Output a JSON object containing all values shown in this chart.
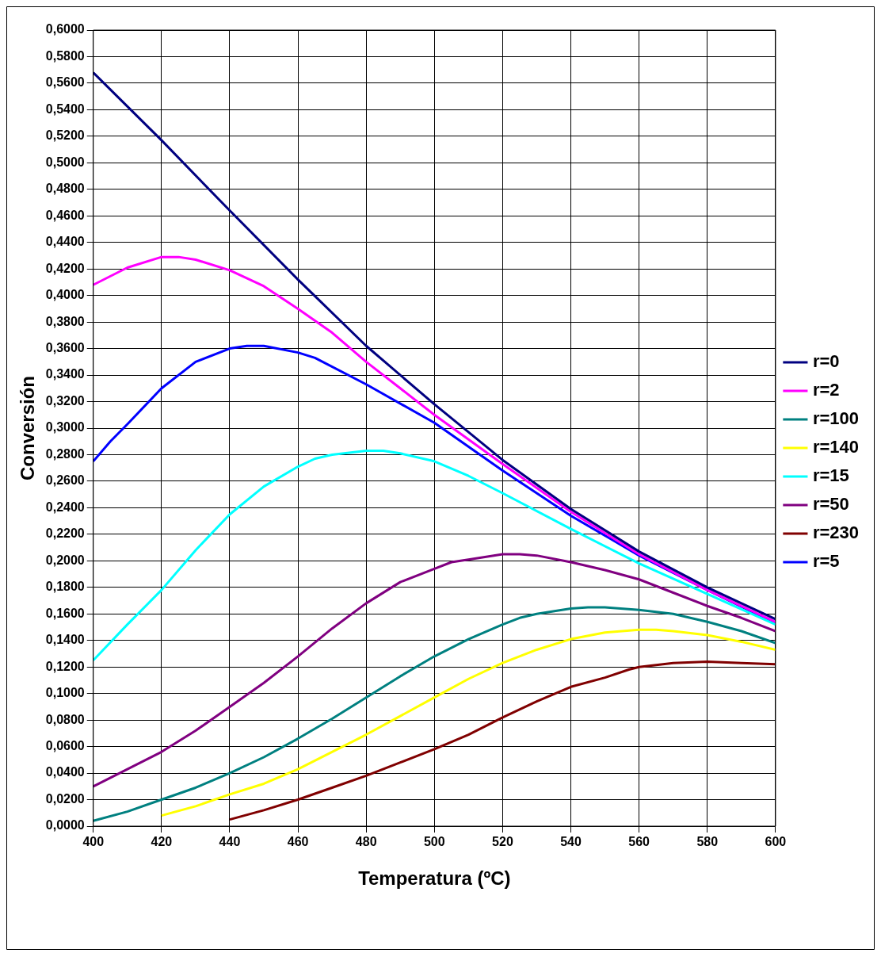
{
  "chart_data": {
    "type": "line",
    "xlabel": "Temperatura (ºC)",
    "ylabel": "Conversión",
    "xlim": [
      400,
      600
    ],
    "xticks": [
      400,
      420,
      440,
      460,
      480,
      500,
      520,
      540,
      560,
      580,
      600
    ],
    "ylim": [
      0,
      0.6
    ],
    "yticks": [
      {
        "value": 0,
        "label": "0,0000"
      },
      {
        "value": 0.02,
        "label": "0,0200"
      },
      {
        "value": 0.04,
        "label": "0,0400"
      },
      {
        "value": 0.06,
        "label": "0,0600"
      },
      {
        "value": 0.08,
        "label": "0,0800"
      },
      {
        "value": 0.1,
        "label": "0,1000"
      },
      {
        "value": 0.12,
        "label": "0,1200"
      },
      {
        "value": 0.14,
        "label": "0,1400"
      },
      {
        "value": 0.16,
        "label": "0,1600"
      },
      {
        "value": 0.18,
        "label": "0,1800"
      },
      {
        "value": 0.2,
        "label": "0,2000"
      },
      {
        "value": 0.22,
        "label": "0,2200"
      },
      {
        "value": 0.24,
        "label": "0,2400"
      },
      {
        "value": 0.26,
        "label": "0,2600"
      },
      {
        "value": 0.28,
        "label": "0,2800"
      },
      {
        "value": 0.3,
        "label": "0,3000"
      },
      {
        "value": 0.32,
        "label": "0,3200"
      },
      {
        "value": 0.34,
        "label": "0,3400"
      },
      {
        "value": 0.36,
        "label": "0,3600"
      },
      {
        "value": 0.38,
        "label": "0,3800"
      },
      {
        "value": 0.4,
        "label": "0,4000"
      },
      {
        "value": 0.42,
        "label": "0,4200"
      },
      {
        "value": 0.44,
        "label": "0,4400"
      },
      {
        "value": 0.46,
        "label": "0,4600"
      },
      {
        "value": 0.48,
        "label": "0,4800"
      },
      {
        "value": 0.5,
        "label": "0,5000"
      },
      {
        "value": 0.52,
        "label": "0,5200"
      },
      {
        "value": 0.54,
        "label": "0,5400"
      },
      {
        "value": 0.56,
        "label": "0,5600"
      },
      {
        "value": 0.58,
        "label": "0,5800"
      },
      {
        "value": 0.6,
        "label": "0,6000"
      }
    ],
    "grid": true,
    "legend": "right",
    "marker": "none",
    "line_style": "solid",
    "series": [
      {
        "name": "r=0",
        "color": "#000080",
        "x": [
          400,
          420,
          440,
          460,
          480,
          500,
          520,
          540,
          560,
          580,
          600
        ],
        "values": [
          0.568,
          0.517,
          0.464,
          0.412,
          0.362,
          0.318,
          0.276,
          0.239,
          0.207,
          0.18,
          0.156
        ]
      },
      {
        "name": "r=2",
        "color": "#ff00ff",
        "x": [
          400,
          410,
          420,
          425,
          430,
          440,
          450,
          460,
          470,
          480,
          490,
          500,
          520,
          540,
          560,
          580,
          600
        ],
        "values": [
          0.408,
          0.421,
          0.429,
          0.429,
          0.427,
          0.419,
          0.407,
          0.39,
          0.372,
          0.35,
          0.33,
          0.31,
          0.273,
          0.237,
          0.205,
          0.178,
          0.154
        ]
      },
      {
        "name": "r=100",
        "color": "#008080",
        "x": [
          400,
          410,
          420,
          430,
          440,
          450,
          460,
          470,
          480,
          490,
          500,
          510,
          520,
          525,
          530,
          540,
          545,
          550,
          560,
          570,
          580,
          590,
          600
        ],
        "values": [
          0.004,
          0.011,
          0.02,
          0.029,
          0.04,
          0.052,
          0.066,
          0.081,
          0.097,
          0.113,
          0.128,
          0.141,
          0.152,
          0.157,
          0.16,
          0.164,
          0.165,
          0.165,
          0.163,
          0.16,
          0.154,
          0.147,
          0.138
        ]
      },
      {
        "name": "r=140",
        "color": "#ffff00",
        "x": [
          420,
          430,
          440,
          450,
          460,
          470,
          480,
          490,
          500,
          510,
          520,
          530,
          540,
          550,
          560,
          565,
          570,
          580,
          590,
          600
        ],
        "values": [
          0.008,
          0.015,
          0.024,
          0.032,
          0.043,
          0.056,
          0.069,
          0.083,
          0.097,
          0.111,
          0.123,
          0.133,
          0.141,
          0.146,
          0.148,
          0.148,
          0.147,
          0.144,
          0.139,
          0.133
        ]
      },
      {
        "name": "r=15",
        "color": "#00ffff",
        "x": [
          400,
          410,
          420,
          430,
          440,
          450,
          460,
          465,
          470,
          480,
          485,
          490,
          500,
          510,
          520,
          540,
          560,
          580,
          600
        ],
        "values": [
          0.125,
          0.152,
          0.178,
          0.208,
          0.235,
          0.256,
          0.271,
          0.277,
          0.28,
          0.283,
          0.283,
          0.281,
          0.275,
          0.264,
          0.251,
          0.224,
          0.198,
          0.175,
          0.152
        ]
      },
      {
        "name": "r=50",
        "color": "#800080",
        "x": [
          400,
          410,
          420,
          430,
          440,
          450,
          460,
          470,
          480,
          490,
          500,
          505,
          510,
          520,
          525,
          530,
          540,
          550,
          560,
          570,
          580,
          590,
          600
        ],
        "values": [
          0.03,
          0.043,
          0.056,
          0.072,
          0.09,
          0.108,
          0.128,
          0.149,
          0.168,
          0.184,
          0.194,
          0.199,
          0.201,
          0.205,
          0.205,
          0.204,
          0.199,
          0.193,
          0.186,
          0.176,
          0.166,
          0.157,
          0.147
        ]
      },
      {
        "name": "r=230",
        "color": "#800000",
        "x": [
          440,
          450,
          460,
          470,
          480,
          490,
          500,
          510,
          520,
          530,
          540,
          550,
          557,
          560,
          570,
          580,
          590,
          600
        ],
        "values": [
          0.005,
          0.012,
          0.02,
          0.029,
          0.038,
          0.048,
          0.058,
          0.069,
          0.082,
          0.094,
          0.105,
          0.112,
          0.118,
          0.12,
          0.123,
          0.124,
          0.123,
          0.122
        ]
      },
      {
        "name": "r=5",
        "color": "#0000ff",
        "x": [
          400,
          405,
          410,
          420,
          430,
          440,
          445,
          450,
          460,
          465,
          480,
          500,
          520,
          540,
          560,
          580,
          600
        ],
        "values": [
          0.275,
          0.29,
          0.303,
          0.33,
          0.35,
          0.36,
          0.362,
          0.362,
          0.357,
          0.353,
          0.333,
          0.304,
          0.268,
          0.234,
          0.204,
          0.178,
          0.153
        ]
      }
    ]
  }
}
